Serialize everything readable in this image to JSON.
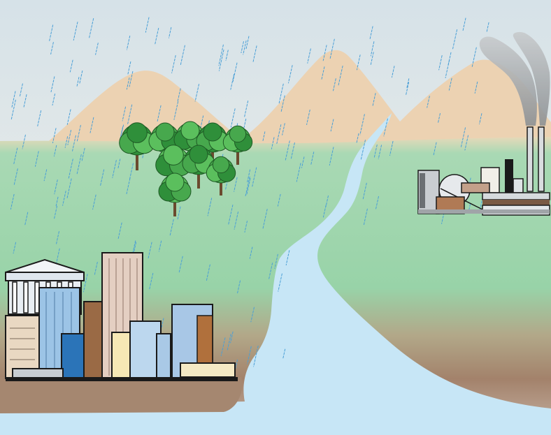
{
  "scene": {
    "colors": {
      "sky_top": "#d6e2e8",
      "sky_bottom": "#f3f1ec",
      "mountain": "#ecd2b2",
      "land_green": "#9bd5ad",
      "land_brown": "#a58770",
      "water": "#c7e6f6",
      "rain": "#4a9fd6",
      "smoke": "#9fa3a6"
    },
    "icons": {
      "sky": "sky-icon",
      "mountains": "mountain-range-icon",
      "rain": "rain-icon",
      "forest": "forest-icon",
      "river": "river-icon",
      "city": "city-buildings-icon",
      "factory": "factory-icon",
      "smoke": "smoke-icon"
    }
  }
}
